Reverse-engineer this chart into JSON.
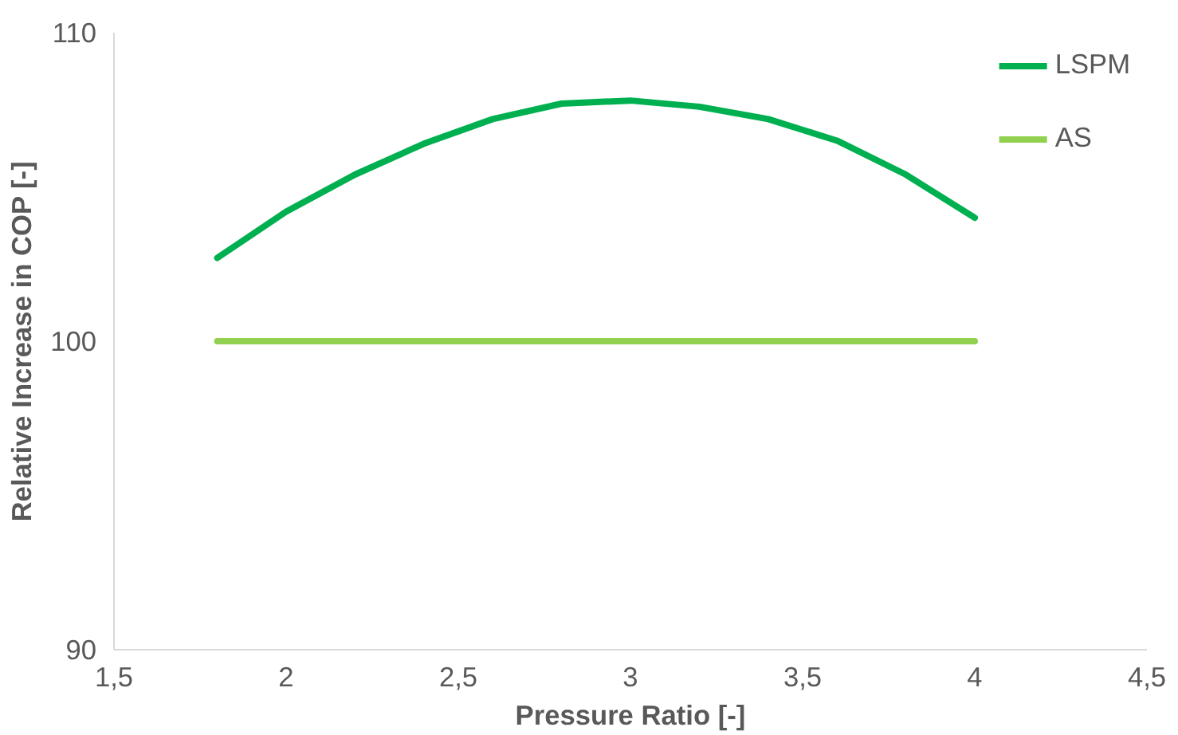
{
  "chart_data": {
    "type": "line",
    "xlabel": "Pressure Ratio [-]",
    "ylabel": "Relative Increase in COP [-]",
    "xlim": [
      1.5,
      4.5
    ],
    "xticks": [
      {
        "value": 1.5,
        "label": "1,5"
      },
      2,
      {
        "value": 2.5,
        "label": "2,5"
      },
      3,
      {
        "value": 3.5,
        "label": "3,5"
      },
      4,
      {
        "value": 4.5,
        "label": "4,5"
      }
    ],
    "ylim": [
      90,
      110
    ],
    "yticks": [
      90,
      100,
      110
    ],
    "grid": false,
    "legend": "top right",
    "marker": "none",
    "line_style": "solid",
    "x": [
      1.8,
      2.0,
      2.2,
      2.4,
      2.6,
      2.8,
      3.0,
      3.2,
      3.4,
      3.6,
      3.8,
      4.0
    ],
    "series": [
      {
        "name": "LSPM",
        "color": "#00b050",
        "values": [
          102.7,
          104.2,
          105.4,
          106.4,
          107.2,
          107.7,
          107.8,
          107.6,
          107.2,
          106.5,
          105.4,
          104.0
        ]
      },
      {
        "name": "AS",
        "color": "#92d050",
        "values": [
          100,
          100,
          100,
          100,
          100,
          100,
          100,
          100,
          100,
          100,
          100,
          100
        ]
      }
    ]
  }
}
